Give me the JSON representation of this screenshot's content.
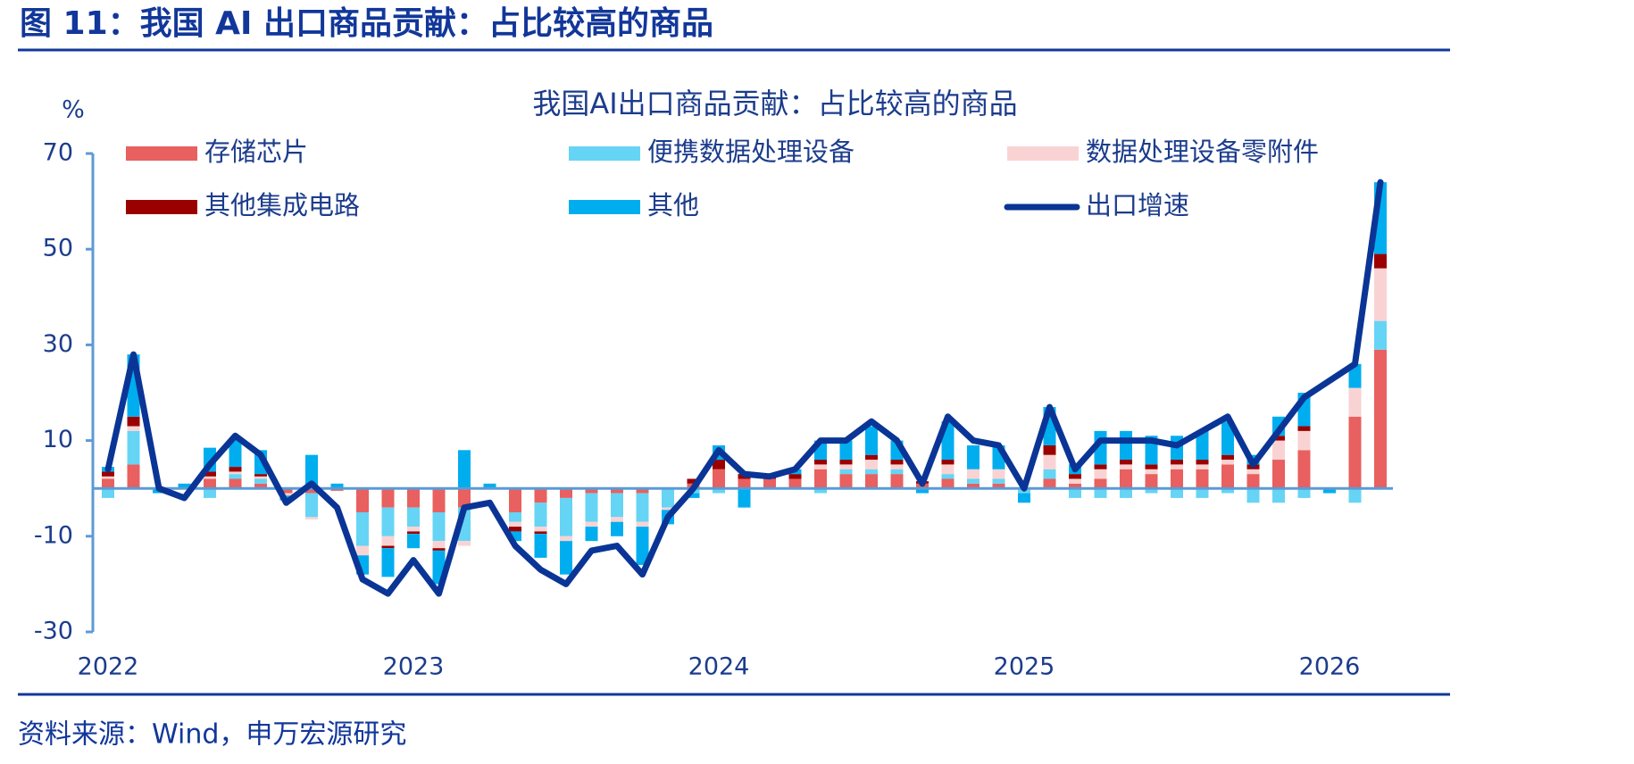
{
  "chart_data": {
    "type": "bar",
    "header": "图 11：我国 AI 出口商品贡献：占比较高的商品",
    "title": "我国AI出口商品贡献：占比较高的商品",
    "y_label": "%",
    "source": "资料来源：Wind，申万宏源研究",
    "categories": [
      "2022",
      null,
      null,
      null,
      null,
      null,
      null,
      null,
      null,
      null,
      null,
      null,
      "2023",
      null,
      null,
      null,
      null,
      null,
      null,
      null,
      null,
      null,
      null,
      null,
      "2024",
      null,
      null,
      null,
      null,
      null,
      null,
      null,
      null,
      null,
      null,
      null,
      "2025",
      null,
      null,
      null,
      null,
      null,
      null,
      null,
      null,
      null,
      null,
      null,
      "2026",
      null,
      null
    ],
    "ylim": [
      -30,
      70
    ],
    "yticks": [
      -30,
      -10,
      10,
      30,
      50,
      70
    ],
    "series": [
      {
        "name": "存储芯片",
        "type": "bar",
        "color": "#e8605f",
        "values": [
          2,
          5,
          0,
          0,
          2,
          2,
          1,
          -1,
          -1,
          -0.5,
          -5,
          -4,
          -4,
          -5,
          -4,
          0,
          -5,
          -3,
          -2,
          -1,
          -1,
          -1,
          0,
          1,
          4,
          2,
          2,
          2,
          4,
          3,
          3,
          3,
          1,
          2,
          1,
          1,
          0,
          2,
          1,
          2,
          4,
          3,
          4,
          4,
          5,
          3,
          6,
          8,
          0,
          15,
          29
        ]
      },
      {
        "name": "便携数据处理设备",
        "type": "bar",
        "color": "#66d4f5",
        "values": [
          -2,
          7,
          0,
          0,
          -2,
          1,
          1,
          0,
          -5,
          0,
          -7,
          -6,
          -4,
          -6,
          -7,
          0,
          -2,
          -5,
          -8,
          -6,
          -5,
          -6,
          -4,
          -1,
          -1,
          0,
          0,
          0,
          -1,
          1,
          1,
          1,
          0,
          1,
          1,
          1,
          -1,
          2,
          -2,
          -2,
          -2,
          -1,
          -2,
          -2,
          -1,
          -3,
          -3,
          -2,
          0,
          -3,
          6
        ]
      },
      {
        "name": "数据处理设备零附件",
        "type": "bar",
        "color": "#f9d3d3",
        "values": [
          0.5,
          1,
          0,
          0,
          0.5,
          0.5,
          0.5,
          -0.5,
          -0.5,
          0,
          -2,
          -2,
          -1,
          -1.5,
          -1,
          0,
          -1,
          -1,
          -1,
          -1,
          -1,
          -1,
          -0.5,
          0,
          0,
          0,
          0,
          0,
          1,
          1,
          2,
          1,
          0,
          2,
          2,
          2,
          0,
          3,
          1,
          2,
          1,
          1,
          1,
          1,
          1,
          1,
          4,
          4,
          0,
          6,
          11
        ]
      },
      {
        "name": "其他集成电路",
        "type": "bar",
        "color": "#9b0000",
        "values": [
          1,
          2,
          0,
          0,
          1,
          1,
          0.5,
          0,
          0,
          0,
          0,
          -0.5,
          -0.5,
          -0.5,
          0,
          0,
          -1,
          -0.5,
          0,
          0,
          0,
          0,
          0,
          1,
          2,
          1,
          1,
          1,
          1,
          1,
          1,
          1,
          0.5,
          1,
          0,
          0,
          0,
          2,
          1,
          1,
          1,
          1,
          1,
          1,
          1,
          1,
          1,
          1,
          0,
          0,
          3
        ]
      },
      {
        "name": "其他",
        "type": "bar",
        "color": "#00aeef",
        "values": [
          1,
          13,
          -1,
          1,
          5,
          6,
          5,
          -1,
          7,
          1,
          -4,
          -6,
          -3,
          -7,
          8,
          1,
          -2,
          -5,
          -7,
          -3,
          -3,
          -8,
          -3,
          -1,
          3,
          -4,
          0,
          1,
          4,
          4,
          6,
          4,
          -1,
          8,
          5,
          5,
          -2,
          8,
          2,
          7,
          6,
          6,
          5,
          6,
          7,
          2,
          4,
          7,
          -1,
          5,
          15
        ]
      },
      {
        "name": "出口增速",
        "type": "line",
        "color": "#0a3596",
        "values": [
          4,
          28,
          0,
          -2,
          5,
          11,
          7,
          -3,
          1,
          -4,
          -19,
          -22,
          -15,
          -22,
          -4,
          -3,
          -12,
          -17,
          -20,
          -13,
          -12,
          -18,
          -6,
          0,
          8,
          3,
          2.5,
          4,
          10,
          10,
          14,
          10,
          1,
          15,
          10,
          9,
          0,
          17,
          4,
          10,
          10,
          10,
          9,
          12,
          15,
          5,
          12,
          19,
          22.5,
          26,
          64
        ]
      }
    ]
  }
}
